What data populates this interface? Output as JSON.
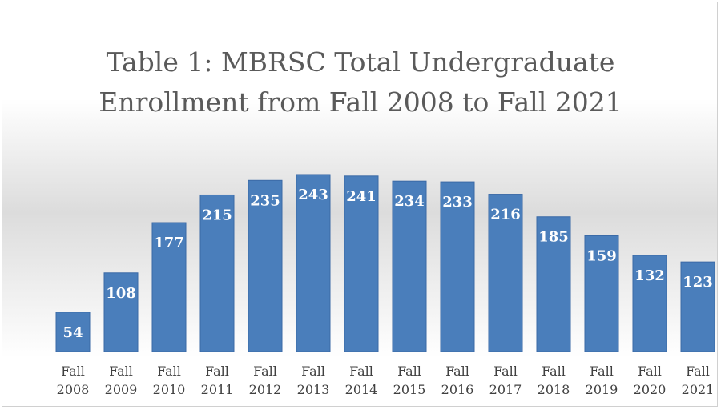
{
  "chart_data": {
    "type": "bar",
    "title_lines": [
      "Table 1: MBRSC Total Undergraduate",
      "Enrollment from Fall 2008 to Fall 2021"
    ],
    "categories": [
      [
        "Fall",
        "2008"
      ],
      [
        "Fall",
        "2009"
      ],
      [
        "Fall",
        "2010"
      ],
      [
        "Fall",
        "2011"
      ],
      [
        "Fall",
        "2012"
      ],
      [
        "Fall",
        "2013"
      ],
      [
        "Fall",
        "2014"
      ],
      [
        "Fall",
        "2015"
      ],
      [
        "Fall",
        "2016"
      ],
      [
        "Fall",
        "2017"
      ],
      [
        "Fall",
        "2018"
      ],
      [
        "Fall",
        "2019"
      ],
      [
        "Fall",
        "2020"
      ],
      [
        "Fall",
        "2021"
      ]
    ],
    "values": [
      54,
      108,
      177,
      215,
      235,
      243,
      241,
      234,
      233,
      216,
      185,
      159,
      132,
      123
    ],
    "ylim": [
      0,
      243
    ],
    "grid": false,
    "legend": "none",
    "bar_color": "#4a7ebb",
    "bar_edge_color": "#3a69a6",
    "label_color": "#ffffff",
    "tick_color": "#404040"
  }
}
